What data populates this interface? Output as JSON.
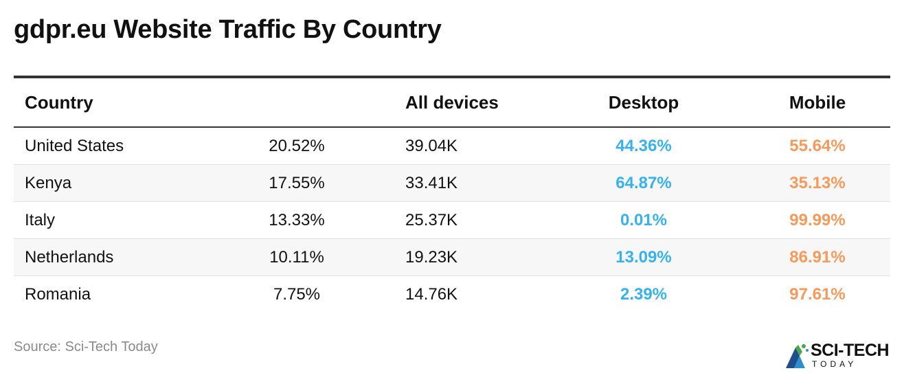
{
  "title": "gdpr.eu Website Traffic By Country",
  "chart_data": {
    "type": "table",
    "columns": [
      "Country",
      "",
      "All devices",
      "Desktop",
      "Mobile"
    ],
    "rows": [
      {
        "country": "United States",
        "share": "20.52%",
        "all_devices": "39.04K",
        "desktop": "44.36%",
        "mobile": "55.64%"
      },
      {
        "country": "Kenya",
        "share": "17.55%",
        "all_devices": "33.41K",
        "desktop": "64.87%",
        "mobile": "35.13%"
      },
      {
        "country": "Italy",
        "share": "13.33%",
        "all_devices": "25.37K",
        "desktop": "0.01%",
        "mobile": "99.99%"
      },
      {
        "country": "Netherlands",
        "share": "10.11%",
        "all_devices": "19.23K",
        "desktop": "13.09%",
        "mobile": "86.91%"
      },
      {
        "country": "Romania",
        "share": "7.75%",
        "all_devices": "14.76K",
        "desktop": "2.39%",
        "mobile": "97.61%"
      }
    ]
  },
  "colors": {
    "desktop": "#36b3ec",
    "mobile": "#f59a5a"
  },
  "source": "Source: Sci-Tech Today",
  "logo": {
    "line1": "SCI-TECH",
    "line2": "TODAY"
  }
}
